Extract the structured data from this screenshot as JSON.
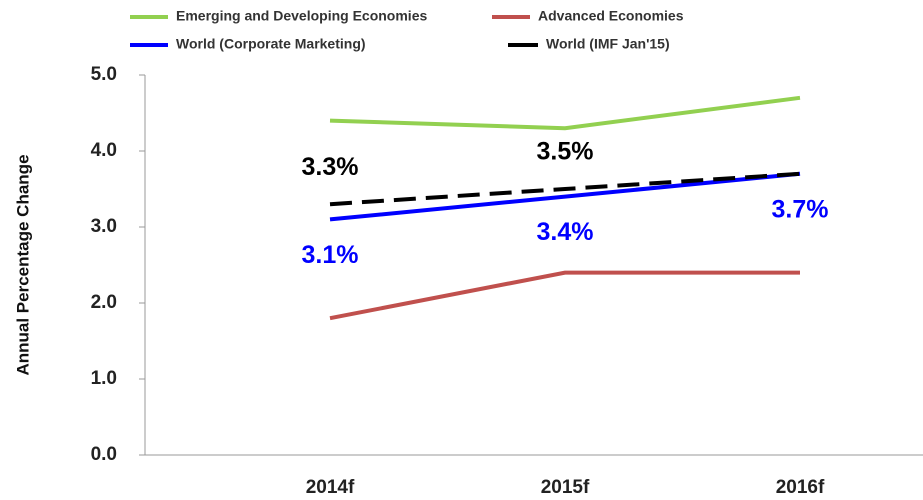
{
  "chart_data": {
    "type": "line",
    "y_label": "Annual Percentage Change",
    "categories": [
      "2014f",
      "2015f",
      "2016f"
    ],
    "series": [
      {
        "name": "Emerging and Developing Economies",
        "color": "#92d050",
        "values": [
          4.4,
          4.3,
          4.7
        ]
      },
      {
        "name": "Advanced Economies",
        "color": "#c0504d",
        "values": [
          1.8,
          2.4,
          2.4
        ]
      },
      {
        "name": "World (Corporate Marketing)",
        "color": "#0000ff",
        "values": [
          3.1,
          3.4,
          3.7
        ],
        "value_labels": [
          "3.1%",
          "3.4%",
          "3.7%"
        ]
      },
      {
        "name": "World (IMF Jan'15)",
        "color": "#000000",
        "dashed": true,
        "values": [
          3.3,
          3.5,
          3.7
        ],
        "value_labels": [
          "3.3%",
          "3.5%",
          null
        ]
      }
    ],
    "ylim": [
      0,
      5
    ],
    "yticks": [
      {
        "value": 0,
        "label": "0.0"
      },
      {
        "value": 1,
        "label": "1.0"
      },
      {
        "value": 2,
        "label": "2.0"
      },
      {
        "value": 3,
        "label": "3.0"
      },
      {
        "value": 4,
        "label": "4.0"
      },
      {
        "value": 5,
        "label": "5.0"
      }
    ],
    "grid": false,
    "legend": "top"
  }
}
